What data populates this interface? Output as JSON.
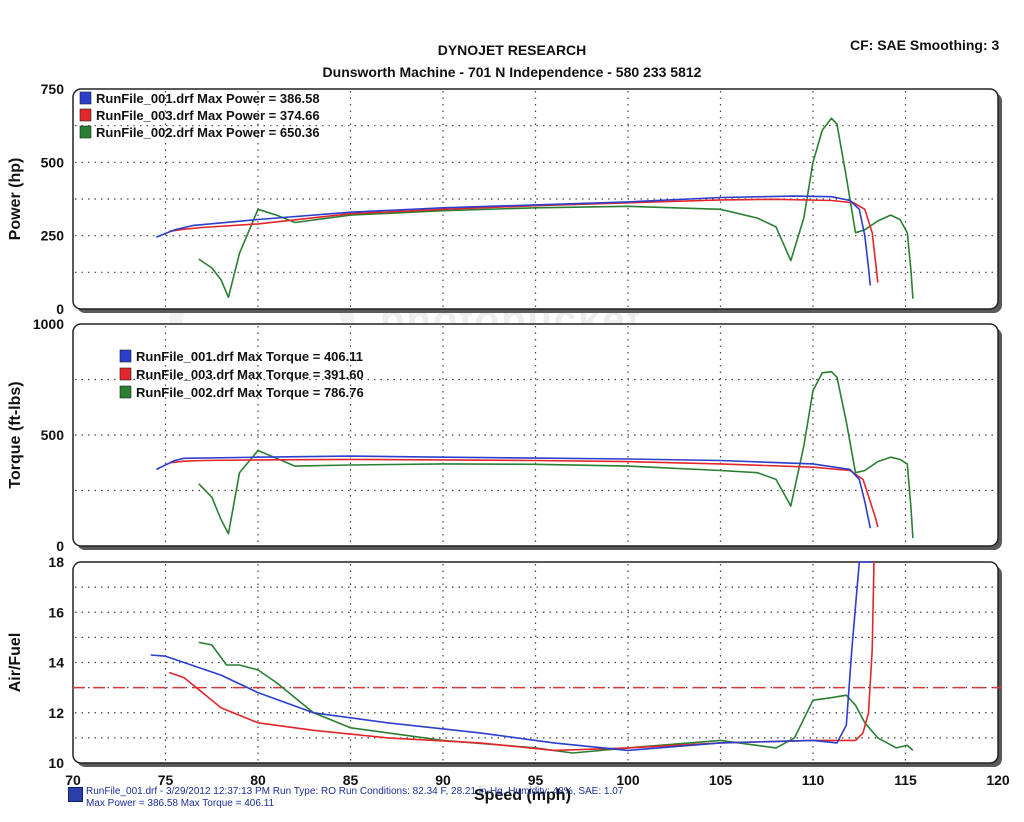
{
  "header": {
    "title": "DYNOJET RESEARCH",
    "subtitle": "Dunsworth Machine - 701 N Independence - 580 233 5812",
    "cf_info": "CF: SAE  Smoothing: 3"
  },
  "watermark": {
    "line1": "photobucket",
    "line2": "Join free. Share privately."
  },
  "footer": {
    "line1": "RunFile_001.drf - 3/29/2012 12:37:13 PM  Run Type: RO  Run Conditions: 82.34 F, 28.21 in-Hg, Humidity: 48%, SAE: 1.07",
    "line2": "Max Power = 386.58  Max Torque = 406.11"
  },
  "colors": {
    "run001": "#2b3fcc",
    "run003": "#e3262b",
    "run002": "#2a7f33",
    "ref_line": "#d63a3a"
  },
  "chart_data": [
    {
      "type": "line",
      "ylabel": "Power (hp)",
      "xlim": [
        70,
        120
      ],
      "ylim": [
        0,
        750
      ],
      "yticks": [
        0,
        250,
        500,
        750
      ],
      "grid": true,
      "legend_position": "top-left",
      "legend": [
        "RunFile_001.drf Max Power = 386.58",
        "RunFile_003.drf Max Power = 374.66",
        "RunFile_002.drf Max Power = 650.36"
      ],
      "series": [
        {
          "name": "RunFile_001.drf",
          "x": [
            74.5,
            75.5,
            76.5,
            80,
            85,
            90,
            95,
            100,
            105,
            109,
            111,
            112,
            112.5,
            112.8,
            113,
            113.1
          ],
          "y": [
            245,
            270,
            285,
            305,
            330,
            345,
            355,
            365,
            380,
            385,
            383,
            370,
            340,
            250,
            140,
            80
          ]
        },
        {
          "name": "RunFile_003.drf",
          "x": [
            75.2,
            76,
            77,
            80,
            85,
            90,
            95,
            100,
            105,
            108,
            111,
            112.2,
            112.8,
            113.2,
            113.4,
            113.5
          ],
          "y": [
            265,
            272,
            278,
            290,
            325,
            340,
            352,
            362,
            372,
            374,
            370,
            362,
            340,
            260,
            150,
            90
          ]
        },
        {
          "name": "RunFile_002.drf",
          "x": [
            76.8,
            77.5,
            78,
            78.4,
            79,
            80,
            81,
            82,
            85,
            90,
            95,
            100,
            105,
            107,
            108,
            108.8,
            109.5,
            110,
            110.5,
            111,
            111.3,
            111.8,
            112.3,
            112.8,
            113.5,
            114.2,
            114.7,
            115.1,
            115.3,
            115.4
          ],
          "y": [
            170,
            140,
            100,
            40,
            190,
            340,
            320,
            295,
            320,
            335,
            345,
            350,
            340,
            310,
            280,
            165,
            310,
            500,
            610,
            650,
            630,
            450,
            260,
            270,
            300,
            320,
            305,
            260,
            130,
            35
          ]
        }
      ]
    },
    {
      "type": "line",
      "ylabel": "Torque (ft-lbs)",
      "xlim": [
        70,
        120
      ],
      "ylim": [
        0,
        1000
      ],
      "yticks": [
        0,
        500,
        1000
      ],
      "grid": true,
      "legend_position": "top-left",
      "legend": [
        "RunFile_001.drf Max Torque = 406.11",
        "RunFile_003.drf Max Torque = 391.60",
        "RunFile_002.drf Max Torque = 786.76"
      ],
      "series": [
        {
          "name": "RunFile_001.drf",
          "x": [
            74.5,
            75.5,
            76,
            80,
            85,
            90,
            95,
            100,
            105,
            110,
            112,
            112.5,
            112.8,
            113,
            113.1
          ],
          "y": [
            345,
            385,
            395,
            400,
            405,
            400,
            396,
            392,
            385,
            370,
            345,
            300,
            200,
            120,
            80
          ]
        },
        {
          "name": "RunFile_003.drf",
          "x": [
            75.2,
            76,
            77,
            80,
            85,
            90,
            95,
            100,
            105,
            110,
            112,
            112.7,
            113.1,
            113.4,
            113.5
          ],
          "y": [
            375,
            382,
            385,
            388,
            390,
            388,
            385,
            380,
            370,
            355,
            340,
            300,
            200,
            120,
            85
          ]
        },
        {
          "name": "RunFile_002.drf",
          "x": [
            76.8,
            77.5,
            78,
            78.4,
            79,
            80,
            81,
            82,
            85,
            90,
            95,
            100,
            105,
            107,
            108,
            108.8,
            109.5,
            110,
            110.5,
            111,
            111.3,
            111.8,
            112.3,
            112.8,
            113.5,
            114.2,
            114.7,
            115.1,
            115.3,
            115.4
          ],
          "y": [
            280,
            220,
            120,
            55,
            330,
            430,
            395,
            360,
            365,
            370,
            368,
            360,
            340,
            330,
            300,
            180,
            450,
            700,
            780,
            785,
            760,
            560,
            330,
            340,
            380,
            400,
            390,
            370,
            170,
            35
          ]
        }
      ]
    },
    {
      "type": "line",
      "ylabel": "Air/Fuel",
      "xlabel": "Speed (mph)",
      "xlim": [
        70,
        120
      ],
      "xticks": [
        70,
        75,
        80,
        85,
        90,
        95,
        100,
        105,
        110,
        115,
        120
      ],
      "ylim": [
        10,
        18
      ],
      "yticks": [
        10,
        12,
        14,
        16,
        18
      ],
      "grid": true,
      "reference_line": 13,
      "series": [
        {
          "name": "RunFile_001.drf",
          "x": [
            74.2,
            75,
            76,
            78,
            80,
            83,
            87,
            92,
            96,
            100,
            105,
            110,
            111.3,
            111.8,
            112.1,
            112.5,
            113,
            113.2
          ],
          "y": [
            14.3,
            14.25,
            14.0,
            13.5,
            12.8,
            12.0,
            11.6,
            11.2,
            10.8,
            10.5,
            10.8,
            10.9,
            10.8,
            11.5,
            14.5,
            18,
            18,
            18
          ]
        },
        {
          "name": "RunFile_003.drf",
          "x": [
            75.2,
            76,
            77,
            78,
            80,
            83,
            87,
            92,
            96,
            100,
            105,
            110,
            112.3,
            112.7,
            113,
            113.2,
            113.3
          ],
          "y": [
            13.6,
            13.4,
            12.8,
            12.2,
            11.6,
            11.3,
            11.0,
            10.8,
            10.5,
            10.6,
            10.8,
            10.9,
            10.9,
            11.2,
            12,
            14.5,
            18
          ]
        },
        {
          "name": "RunFile_002.drf",
          "x": [
            76.8,
            77.5,
            78.3,
            79,
            80,
            81,
            82,
            83,
            85,
            90,
            95,
            97,
            100,
            105,
            107,
            108,
            109,
            110,
            111,
            111.8,
            112.3,
            112.8,
            113.5,
            114.5,
            115.1,
            115.4
          ],
          "y": [
            14.8,
            14.7,
            13.9,
            13.9,
            13.7,
            13.2,
            12.6,
            12.0,
            11.4,
            10.9,
            10.6,
            10.4,
            10.6,
            10.9,
            10.7,
            10.6,
            11.0,
            12.5,
            12.6,
            12.7,
            12.3,
            11.6,
            11.0,
            10.6,
            10.7,
            10.5
          ]
        }
      ]
    }
  ]
}
